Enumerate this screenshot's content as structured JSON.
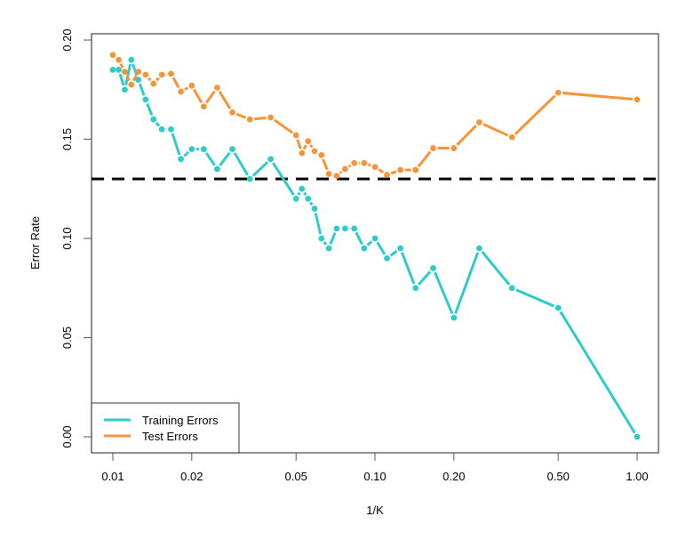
{
  "chart_data": {
    "type": "line",
    "title": "",
    "xlabel": "1/K",
    "ylabel": "Error Rate",
    "x_scale": "log",
    "xlim": [
      0.01,
      1.0
    ],
    "ylim": [
      0.0,
      0.2
    ],
    "x_ticks": [
      "0.01",
      "0.02",
      "0.05",
      "0.10",
      "0.20",
      "0.50",
      "1.00"
    ],
    "x_tick_values": [
      0.01,
      0.02,
      0.05,
      0.1,
      0.2,
      0.5,
      1.0
    ],
    "y_ticks": [
      "0.00",
      "0.05",
      "0.10",
      "0.15",
      "0.20"
    ],
    "y_tick_values": [
      0.0,
      0.05,
      0.1,
      0.15,
      0.2
    ],
    "grid": false,
    "legend_position": "bottom-left",
    "x": [
      0.01,
      0.01053,
      0.01111,
      0.01176,
      0.0125,
      0.01333,
      0.01429,
      0.01538,
      0.01667,
      0.01818,
      0.02,
      0.02222,
      0.025,
      0.02857,
      0.03333,
      0.04,
      0.05,
      0.05263,
      0.05556,
      0.05882,
      0.0625,
      0.06667,
      0.07143,
      0.07692,
      0.08333,
      0.09091,
      0.1,
      0.1111,
      0.125,
      0.1429,
      0.1667,
      0.2,
      0.25,
      0.3333,
      0.5,
      1.0
    ],
    "series": [
      {
        "name": "Training Errors",
        "color": "#2ECBCB",
        "values": [
          0.185,
          0.185,
          0.175,
          0.19,
          0.18,
          0.17,
          0.16,
          0.155,
          0.155,
          0.14,
          0.145,
          0.145,
          0.135,
          0.145,
          0.13,
          0.14,
          0.12,
          0.125,
          0.12,
          0.115,
          0.1,
          0.095,
          0.105,
          0.105,
          0.105,
          0.095,
          0.1,
          0.09,
          0.095,
          0.075,
          0.085,
          0.06,
          0.095,
          0.075,
          0.065,
          0.0
        ]
      },
      {
        "name": "Test Errors",
        "color": "#F5953A",
        "values": [
          0.1925,
          0.19,
          0.184,
          0.1775,
          0.184,
          0.1825,
          0.178,
          0.1825,
          0.183,
          0.174,
          0.177,
          0.1665,
          0.176,
          0.1635,
          0.16,
          0.161,
          0.152,
          0.143,
          0.149,
          0.144,
          0.142,
          0.1325,
          0.1315,
          0.135,
          0.138,
          0.138,
          0.136,
          0.132,
          0.1345,
          0.1345,
          0.1455,
          0.1455,
          0.1585,
          0.151,
          0.1735,
          0.17
        ]
      }
    ],
    "hline": {
      "y": 0.13,
      "style": "dashed",
      "color": "#000000"
    }
  }
}
